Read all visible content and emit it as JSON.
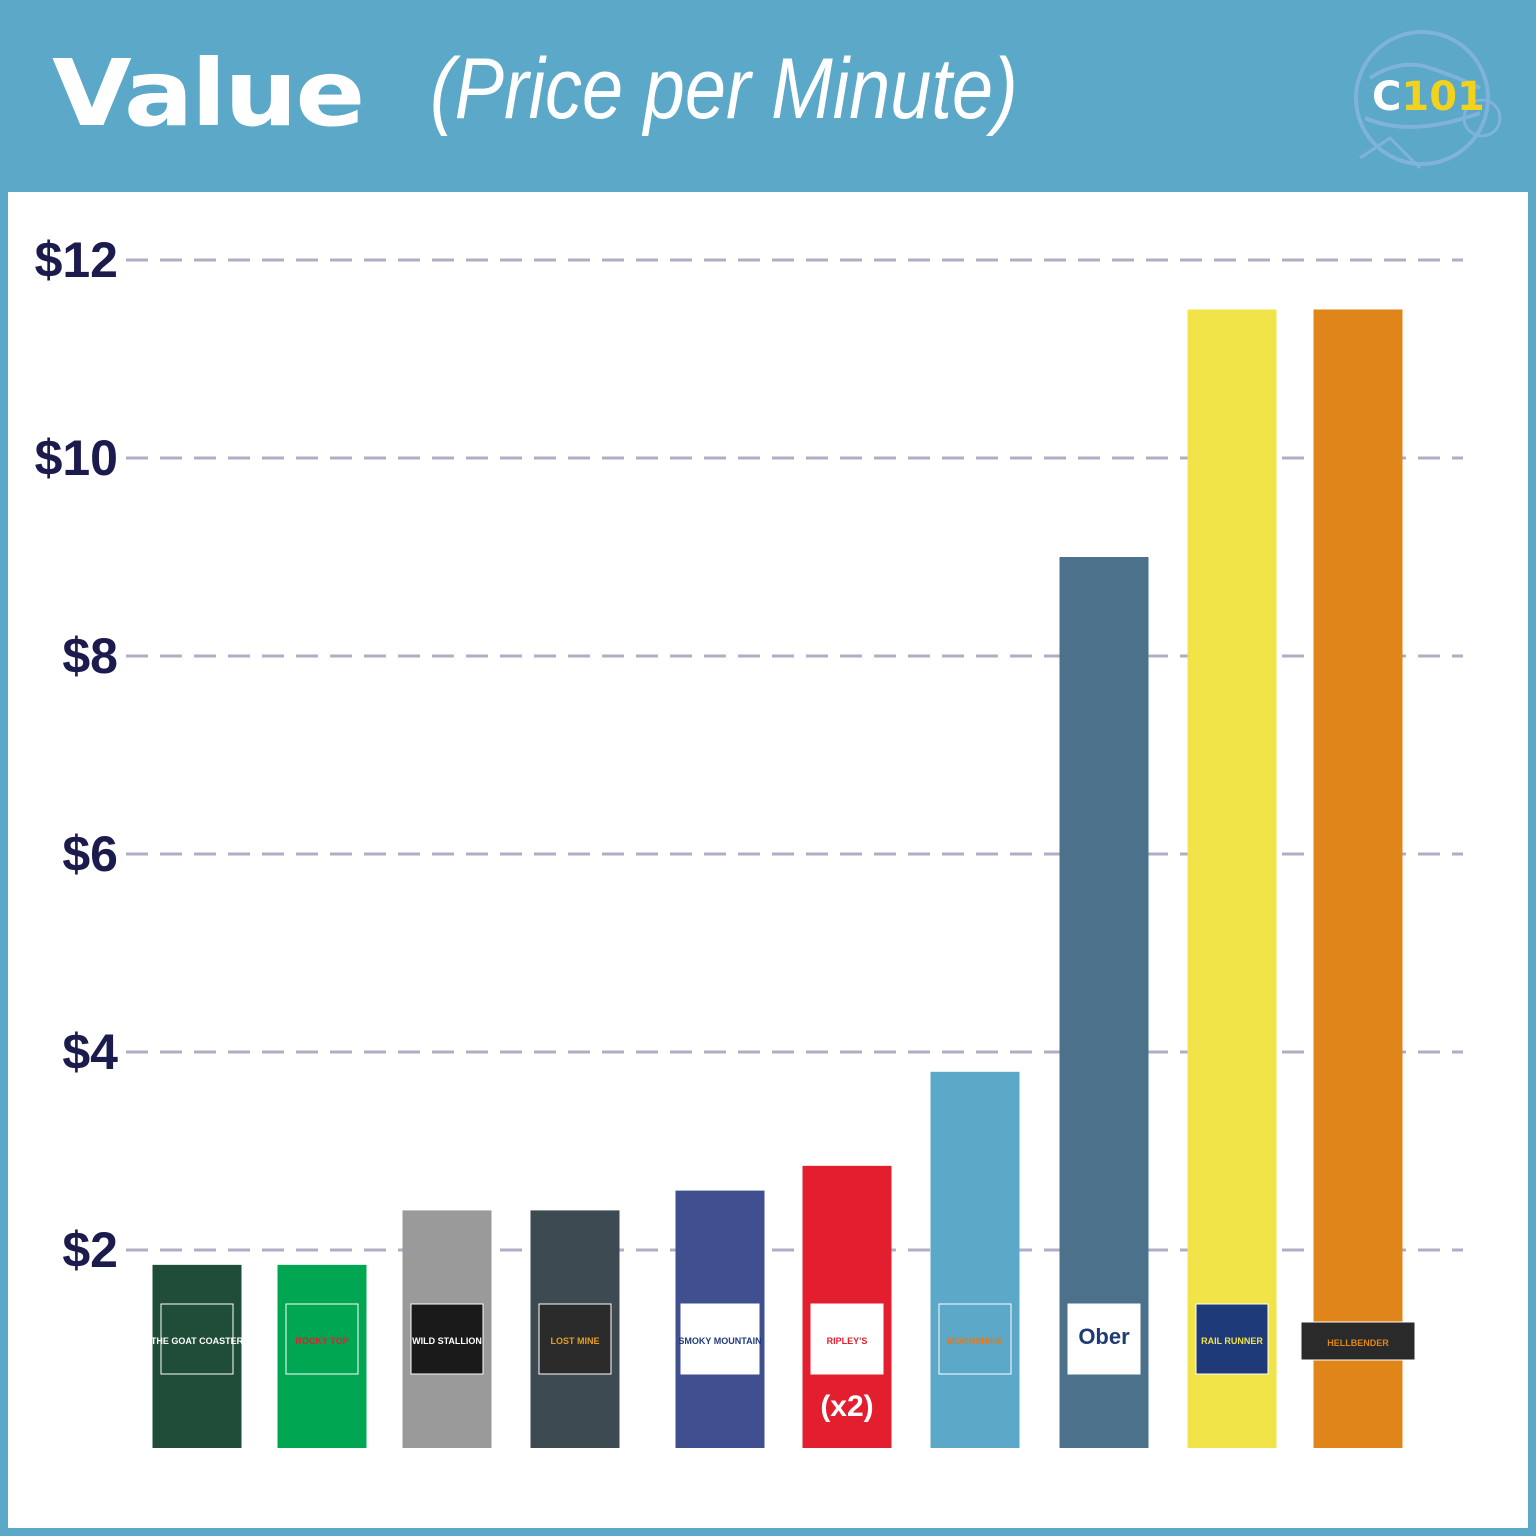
{
  "header": {
    "title_main": "Value",
    "title_sub": "(Price per Minute)",
    "logo_c": "C",
    "logo_num": "101"
  },
  "chart_data": {
    "type": "bar",
    "title": "Value (Price per Minute)",
    "xlabel": "",
    "ylabel": "",
    "ylim": [
      0,
      12
    ],
    "y_ticks": [
      2,
      4,
      6,
      8,
      10,
      12
    ],
    "y_tick_labels": [
      "$2",
      "$4",
      "$6",
      "$8",
      "$10",
      "$12"
    ],
    "grid": true,
    "categories": [
      "The Goat Coaster",
      "Rocky Top Mountain Coaster",
      "Wild Stallion Mountain Coaster",
      "Lost Mine Mountain Coaster",
      "Smoky Mountain Alpine Coaster",
      "Ripley's Mountain Coaster",
      "Moonshine Mountain Coaster",
      "Ober Mountain",
      "Rail Runner",
      "Anakeesta The Hellbender Smoky Mountain Coaster"
    ],
    "values": [
      1.85,
      1.85,
      2.4,
      2.4,
      2.6,
      2.85,
      3.8,
      9.0,
      11.5,
      11.5
    ],
    "colors": [
      "#1f4d38",
      "#00a651",
      "#9a9a9a",
      "#3d4a52",
      "#3f4f8f",
      "#e31f2f",
      "#5ba8c8",
      "#4b718b",
      "#f0e449",
      "#df8519"
    ],
    "annotations": [
      {
        "category": "Ripley's Mountain Coaster",
        "text": "(x2)"
      }
    ],
    "logo_texts": [
      "THE GOAT COASTER",
      "ROCKY TOP",
      "WILD STALLION",
      "LOST MINE",
      "SMOKY MOUNTAIN",
      "RIPLEY'S",
      "MOONSHINE",
      "Ober",
      "RAIL RUNNER",
      "HELLBENDER"
    ]
  }
}
